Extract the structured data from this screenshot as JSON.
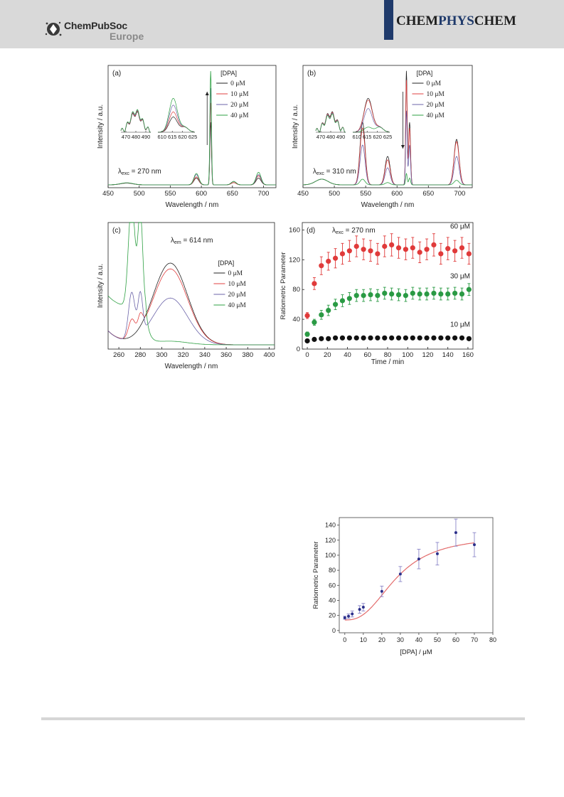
{
  "header": {
    "publisher_name": "ChemPubSoc",
    "publisher_sub": "Europe",
    "journal_left": "CHEM",
    "journal_mid": "PHYS",
    "journal_right": "CHEM",
    "colors": {
      "band": "#d9d9d9",
      "accent": "#1f3a6b"
    }
  },
  "legend_title": "[DPA]",
  "legend_entries": [
    "0  μM",
    "10  μM",
    "20  μM",
    "40  μM"
  ],
  "series_colors": [
    "#222222",
    "#e04040",
    "#6b63a8",
    "#2ea043"
  ],
  "chart_data": [
    {
      "panel": "(a)",
      "type": "line",
      "xlabel": "Wavelength / nm",
      "ylabel": "Intensity / a.u.",
      "xlim": [
        450,
        720
      ],
      "xticks": [
        450,
        500,
        550,
        600,
        650,
        700
      ],
      "annotation": "λexc = 270 nm",
      "legend_title": "[DPA]",
      "legend": [
        "0  μM",
        "10  μM",
        "20  μM",
        "40  μM"
      ],
      "trend_arrow": "up",
      "peaks": [
        {
          "x": 480,
          "values": [
            0.015,
            0.016,
            0.017,
            0.018
          ]
        },
        {
          "x": 592,
          "values": [
            0.06,
            0.07,
            0.09,
            0.1
          ]
        },
        {
          "x": 615,
          "values": [
            0.55,
            0.72,
            0.85,
            1.0
          ]
        },
        {
          "x": 652,
          "values": [
            0.02,
            0.02,
            0.03,
            0.03
          ]
        },
        {
          "x": 692,
          "values": [
            0.06,
            0.08,
            0.09,
            0.11
          ]
        }
      ],
      "inset1": {
        "xticks": [
          470,
          480,
          490
        ],
        "xlim": [
          465,
          495
        ]
      },
      "inset2": {
        "xticks": [
          610,
          615,
          620,
          625
        ],
        "xlim": [
          608,
          626
        ]
      }
    },
    {
      "panel": "(b)",
      "type": "line",
      "xlabel": "Wavelength / nm",
      "ylabel": "Intensity / a.u.",
      "xlim": [
        450,
        720
      ],
      "xticks": [
        450,
        500,
        550,
        600,
        650,
        700
      ],
      "annotation": "λexc = 310 nm",
      "legend_title": "[DPA]",
      "legend": [
        "0  μM",
        "10  μM",
        "20  μM",
        "40  μM"
      ],
      "trend_arrow": "down",
      "peaks": [
        {
          "x": 480,
          "values": [
            0.05,
            0.05,
            0.05,
            0.05
          ]
        },
        {
          "x": 545,
          "values": [
            0.55,
            0.5,
            0.35,
            0.05
          ]
        },
        {
          "x": 585,
          "values": [
            0.25,
            0.22,
            0.15,
            0.02
          ]
        },
        {
          "x": 615,
          "values": [
            1.0,
            0.92,
            0.65,
            0.1
          ]
        },
        {
          "x": 620,
          "values": [
            0.55,
            0.5,
            0.35,
            0.06
          ]
        },
        {
          "x": 695,
          "values": [
            0.4,
            0.38,
            0.25,
            0.04
          ]
        }
      ],
      "inset1": {
        "xticks": [
          470,
          480,
          490
        ],
        "xlim": [
          465,
          495
        ]
      },
      "inset2": {
        "xticks": [
          610,
          615,
          620,
          625
        ],
        "xlim": [
          608,
          626
        ]
      }
    },
    {
      "panel": "(c)",
      "type": "line",
      "xlabel": "Wavelength / nm",
      "ylabel": "Intensity / a.u.",
      "xlim": [
        250,
        405
      ],
      "xticks": [
        260,
        280,
        300,
        320,
        340,
        360,
        380,
        400
      ],
      "annotation": "λem = 614 nm",
      "legend_title": "[DPA]",
      "legend": [
        "0  μM",
        "10  μM",
        "20  μM",
        "40  μM"
      ],
      "broad_band": {
        "center": 308,
        "values": [
          0.7,
          0.65,
          0.4,
          0.03
        ]
      },
      "sharp_peaks": {
        "x": [
          272,
          280
        ],
        "values": [
          [
            0,
            0
          ],
          [
            0.15,
            0.12
          ],
          [
            0.4,
            0.35
          ],
          [
            0.92,
            0.82
          ]
        ]
      }
    },
    {
      "panel": "(d)",
      "type": "scatter",
      "xlabel": "Time / min",
      "ylabel": "Ratiometric Parameter",
      "xlim": [
        -5,
        165
      ],
      "ylim": [
        0,
        170
      ],
      "xticks": [
        0,
        20,
        40,
        60,
        80,
        100,
        120,
        140,
        160
      ],
      "yticks": [
        0,
        40,
        80,
        120,
        160
      ],
      "annotation": "λexc = 270 nm",
      "x": [
        0,
        7,
        14,
        21,
        28,
        35,
        42,
        49,
        56,
        63,
        70,
        77,
        84,
        91,
        98,
        105,
        112,
        119,
        126,
        133,
        140,
        147,
        154,
        161
      ],
      "series": [
        {
          "name": "60 μM",
          "color": "#e03a3a",
          "values": [
            45,
            88,
            112,
            118,
            122,
            128,
            132,
            138,
            134,
            132,
            128,
            138,
            140,
            136,
            134,
            136,
            130,
            134,
            140,
            128,
            135,
            132,
            136,
            128
          ],
          "err": [
            4,
            8,
            12,
            12,
            13,
            14,
            14,
            14,
            14,
            14,
            14,
            14,
            15,
            14,
            14,
            14,
            14,
            14,
            15,
            14,
            15,
            14,
            14,
            14
          ]
        },
        {
          "name": "30 μM",
          "color": "#2a9a44",
          "values": [
            20,
            36,
            46,
            52,
            60,
            65,
            68,
            72,
            72,
            73,
            72,
            75,
            74,
            73,
            72,
            75,
            74,
            74,
            75,
            74,
            74,
            75,
            74,
            80
          ],
          "err": [
            3,
            4,
            6,
            7,
            7,
            8,
            8,
            8,
            8,
            8,
            8,
            8,
            8,
            8,
            8,
            8,
            8,
            8,
            8,
            8,
            8,
            8,
            8,
            8
          ]
        },
        {
          "name": "10 μM",
          "color": "#111111",
          "values": [
            11,
            13,
            14,
            14,
            15,
            15,
            15,
            15,
            15,
            15,
            15,
            15,
            15,
            15,
            15,
            15,
            15,
            15,
            15,
            15,
            15,
            15,
            15,
            14
          ],
          "err": [
            1,
            1,
            1,
            1,
            1,
            1,
            1,
            1,
            1,
            1,
            1,
            1,
            1,
            1,
            1,
            1,
            1,
            1,
            1,
            1,
            1,
            1,
            1,
            1
          ]
        }
      ]
    },
    {
      "panel": "inset",
      "type": "scatter",
      "xlabel": "[DPA] / μM",
      "ylabel": "Ratiometric Parameter",
      "xlim": [
        -3,
        80
      ],
      "ylim": [
        -3,
        150
      ],
      "xticks": [
        0,
        10,
        20,
        30,
        40,
        50,
        60,
        70,
        80
      ],
      "yticks": [
        0,
        20,
        40,
        60,
        80,
        100,
        120,
        140
      ],
      "x": [
        0,
        2,
        4,
        8,
        10,
        20,
        30,
        40,
        50,
        60,
        70
      ],
      "values": [
        17,
        19,
        22,
        28,
        31,
        52,
        75,
        95,
        102,
        130,
        114
      ],
      "err": [
        2,
        3,
        4,
        5,
        5,
        7,
        10,
        13,
        15,
        18,
        16
      ],
      "point_color": "#2b2f8a",
      "error_color": "#8a85c8",
      "fit_color": "#e36b6b"
    }
  ]
}
